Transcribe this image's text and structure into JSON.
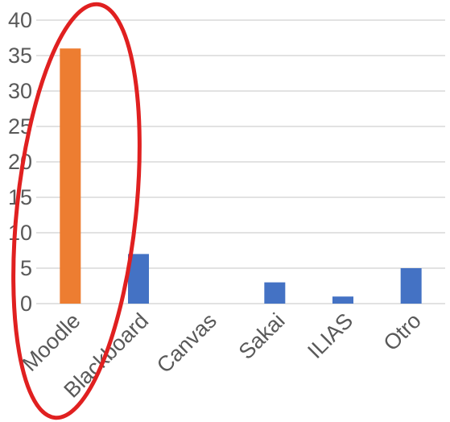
{
  "chart_data": {
    "type": "bar",
    "categories": [
      "Moodle",
      "Blackboard",
      "Canvas",
      "Sakai",
      "ILIAS",
      "Otro"
    ],
    "values": [
      36,
      7,
      0,
      3,
      1,
      5
    ],
    "ylim": [
      0,
      40
    ],
    "yticks": [
      0,
      5,
      10,
      15,
      20,
      25,
      30,
      35,
      40
    ],
    "grid": true,
    "legend": "none",
    "colors": {
      "default_bar": "#4472c4",
      "highlight_bar": "#ed7d31",
      "highlight_index": 0,
      "highlight_ellipse": "#e02020",
      "gridline": "#d9d9d9",
      "text": "#595959"
    }
  }
}
